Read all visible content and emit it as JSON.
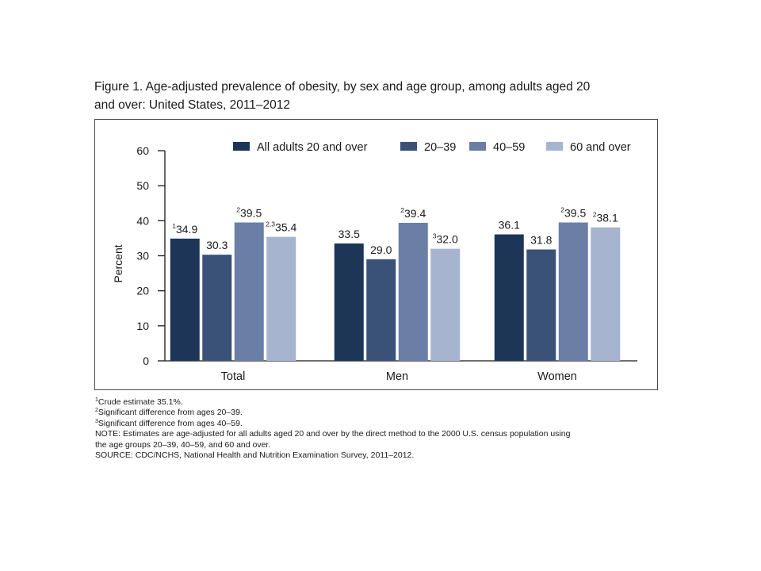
{
  "figure": {
    "title_line1": "Figure 1. Age-adjusted prevalence of obesity, by sex and age group, among adults aged 20",
    "title_line2": "and over: United States, 2011–2012"
  },
  "chart_data": {
    "type": "bar",
    "title": "Figure 1. Age-adjusted prevalence of obesity, by sex and age group, among adults aged 20 and over: United States, 2011–2012",
    "xlabel": "",
    "ylabel": "Percent",
    "ylim": [
      0,
      60
    ],
    "yticks": [
      "0",
      "10",
      "20",
      "30",
      "40",
      "50",
      "60"
    ],
    "categories": [
      "Total",
      "Men",
      "Women"
    ],
    "legend_position": "top-right",
    "grid": false,
    "series": [
      {
        "name": "All adults 20 and over",
        "color": "#1d3557",
        "values": [
          34.9,
          33.5,
          36.1
        ],
        "labels": [
          "34.9",
          "33.5",
          "36.1"
        ],
        "superscripts": [
          "1",
          "",
          ""
        ]
      },
      {
        "name": "20–39",
        "color": "#3b5278",
        "values": [
          30.3,
          29.0,
          31.8
        ],
        "labels": [
          "30.3",
          "29.0",
          "31.8"
        ],
        "superscripts": [
          "",
          "",
          ""
        ]
      },
      {
        "name": "40–59",
        "color": "#6b7ea5",
        "values": [
          39.5,
          39.4,
          39.5
        ],
        "labels": [
          "39.5",
          "39.4",
          "39.5"
        ],
        "superscripts": [
          "2",
          "2",
          "2"
        ]
      },
      {
        "name": "60 and over",
        "color": "#a7b4d0",
        "values": [
          35.4,
          32.0,
          38.1
        ],
        "labels": [
          "35.4",
          "32.0",
          "38.1"
        ],
        "superscripts": [
          "2,3",
          "3",
          "2"
        ]
      }
    ]
  },
  "footnotes": [
    {
      "sup": "1",
      "text": "Crude estimate 35.1%."
    },
    {
      "sup": "2",
      "text": "Significant difference from ages 20–39."
    },
    {
      "sup": "3",
      "text": "Significant difference from ages 40–59."
    },
    {
      "sup": "",
      "text": "NOTE: Estimates are age-adjusted for all adults aged 20 and over by the direct method to the 2000 U.S. census population using"
    },
    {
      "sup": "",
      "text": "the age groups 20–39, 40–59, and 60 and over."
    },
    {
      "sup": "",
      "text": "SOURCE: CDC/NCHS, National Health and Nutrition Examination Survey, 2011–2012."
    }
  ]
}
